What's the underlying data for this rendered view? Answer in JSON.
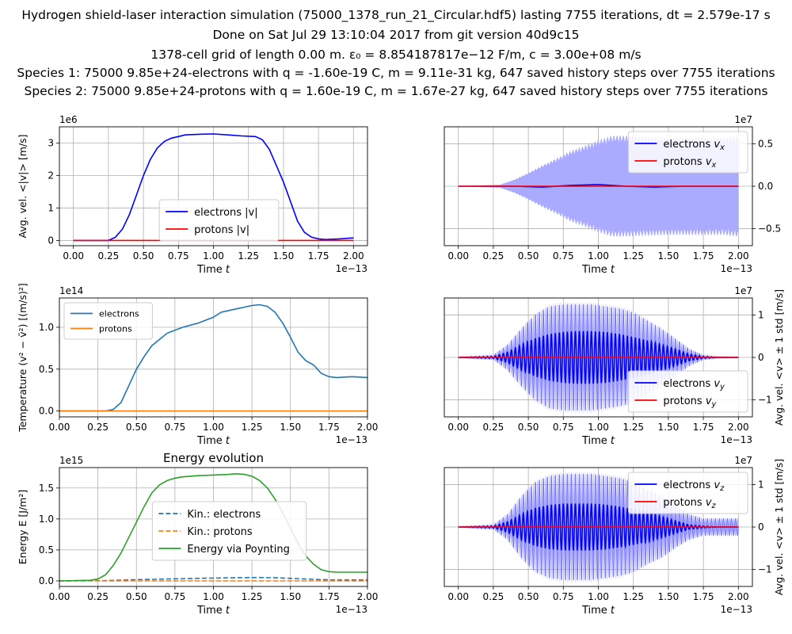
{
  "header": {
    "lines": [
      "Hydrogen shield-laser interaction simulation (75000_1378_run_21_Circular.hdf5) lasting 7755 iterations, dt = 2.579e-17 s",
      "Done on Sat Jul 29 13:10:04 2017 from git version 40d9c15",
      "1378-cell grid of length 0.00 m. ε₀ = 8.854187817e−12 F/m, c = 3.00e+08 m/s",
      "Species 1: 75000 9.85e+24-electrons with q = -1.60e-19 C, m = 9.11e-31 kg, 647 saved history steps over 7755 iterations",
      "Species 2: 75000 9.85e+24-protons with q = 1.60e-19 C, m = 1.67e-27 kg, 647 saved history steps over 7755 iterations"
    ]
  },
  "colors": {
    "blue": "#0000ff",
    "red": "#ff0000",
    "tab_blue": "#1f77b4",
    "tab_orange": "#ff7f0e",
    "tab_green": "#2ca02c",
    "band": "#aaaaff",
    "grid": "#b0b0b0"
  },
  "chart_data": [
    {
      "id": "abs_v",
      "type": "line",
      "title": "",
      "xlabel": "Time t",
      "ylabel": "Avg. vel. <|v|> [m/s]",
      "x_offset_label": "1e−13",
      "y_offset_label": "1e6",
      "xlim": [
        -0.1,
        2.1
      ],
      "ylim": [
        -0.16,
        3.5
      ],
      "xticks": [
        0.0,
        0.25,
        0.5,
        0.75,
        1.0,
        1.25,
        1.5,
        1.75,
        2.0
      ],
      "xticklabels": [
        "0.00",
        "0.25",
        "0.50",
        "0.75",
        "1.00",
        "1.25",
        "1.50",
        "1.75",
        "2.00"
      ],
      "yticks": [
        0,
        1,
        2,
        3
      ],
      "yticklabels": [
        "0",
        "1",
        "2",
        "3"
      ],
      "legend": "lower-center",
      "grid": true,
      "series": [
        {
          "name": "electrons |v|",
          "color": "#0000ff",
          "x": [
            0,
            0.25,
            0.3,
            0.35,
            0.4,
            0.45,
            0.5,
            0.55,
            0.6,
            0.65,
            0.7,
            0.75,
            0.8,
            0.9,
            1.0,
            1.1,
            1.2,
            1.3,
            1.35,
            1.4,
            1.45,
            1.5,
            1.55,
            1.6,
            1.65,
            1.7,
            1.75,
            1.8,
            1.9,
            2.0
          ],
          "y": [
            0,
            0,
            0.1,
            0.35,
            0.8,
            1.4,
            2.0,
            2.5,
            2.85,
            3.05,
            3.15,
            3.2,
            3.25,
            3.27,
            3.28,
            3.25,
            3.22,
            3.2,
            3.1,
            2.8,
            2.3,
            1.8,
            1.2,
            0.6,
            0.25,
            0.1,
            0.05,
            0.03,
            0.05,
            0.08
          ]
        },
        {
          "name": "protons |v|",
          "color": "#ff0000",
          "x": [
            0,
            2.0
          ],
          "y": [
            0,
            0
          ]
        }
      ]
    },
    {
      "id": "vx",
      "type": "line",
      "title": "",
      "xlabel": "Time t",
      "ylabel": "",
      "x_offset_label": "1e−13",
      "y_offset_label": "1e7",
      "xlim": [
        -0.1,
        2.1
      ],
      "ylim": [
        -0.7,
        0.7
      ],
      "xticks": [
        0.0,
        0.25,
        0.5,
        0.75,
        1.0,
        1.25,
        1.5,
        1.75,
        2.0
      ],
      "xticklabels": [
        "0.00",
        "0.25",
        "0.50",
        "0.75",
        "1.00",
        "1.25",
        "1.50",
        "1.75",
        "2.00"
      ],
      "yticks": [
        -0.5,
        0.0,
        0.5
      ],
      "yticklabels": [
        "−0.5",
        "0.0",
        "0.5"
      ],
      "y_axis_side": "right",
      "legend": "top-right",
      "grid": true,
      "band": {
        "x": [
          0,
          0.3,
          0.4,
          0.5,
          0.6,
          0.7,
          0.8,
          0.9,
          1.0,
          1.1,
          1.2,
          1.3,
          1.5,
          1.7,
          1.9,
          2.0
        ],
        "half_width": [
          0,
          0.02,
          0.08,
          0.16,
          0.25,
          0.33,
          0.42,
          0.48,
          0.55,
          0.6,
          0.6,
          0.59,
          0.58,
          0.58,
          0.58,
          0.6
        ]
      },
      "series": [
        {
          "name": "electrons v_x",
          "color": "#0000ff",
          "x": [
            0,
            0.4,
            0.6,
            0.8,
            1.0,
            1.2,
            1.4,
            1.6,
            1.8,
            2.0
          ],
          "y": [
            0,
            0,
            -0.01,
            0.01,
            0.02,
            0.0,
            -0.01,
            0.0,
            0.0,
            0.0
          ]
        },
        {
          "name": "protons v_x",
          "color": "#ff0000",
          "x": [
            0,
            2.0
          ],
          "y": [
            0,
            0
          ]
        }
      ]
    },
    {
      "id": "temperature",
      "type": "line",
      "title": "",
      "xlabel": "Time t",
      "ylabel": "Temperature (v² − v̄²) [(m/s)²]",
      "x_offset_label": "1e−13",
      "y_offset_label": "1e14",
      "xlim": [
        0,
        2.0
      ],
      "ylim": [
        -0.07,
        1.35
      ],
      "xticks": [
        0.0,
        0.25,
        0.5,
        0.75,
        1.0,
        1.25,
        1.5,
        1.75,
        2.0
      ],
      "xticklabels": [
        "0.00",
        "0.25",
        "0.50",
        "0.75",
        "1.00",
        "1.25",
        "1.50",
        "1.75",
        "2.00"
      ],
      "yticks": [
        0,
        0.5,
        1.0
      ],
      "yticklabels": [
        "0.0",
        "0.5",
        "1.0"
      ],
      "legend": "top-left",
      "grid": true,
      "series": [
        {
          "name": "electrons",
          "color": "#1f77b4",
          "x": [
            0,
            0.3,
            0.35,
            0.4,
            0.45,
            0.5,
            0.55,
            0.6,
            0.7,
            0.8,
            0.9,
            1.0,
            1.05,
            1.1,
            1.15,
            1.2,
            1.25,
            1.3,
            1.35,
            1.4,
            1.45,
            1.5,
            1.55,
            1.6,
            1.65,
            1.7,
            1.75,
            1.8,
            1.9,
            2.0
          ],
          "y": [
            0,
            0,
            0.02,
            0.1,
            0.3,
            0.5,
            0.65,
            0.78,
            0.93,
            1.0,
            1.05,
            1.12,
            1.18,
            1.2,
            1.22,
            1.24,
            1.26,
            1.27,
            1.25,
            1.18,
            1.05,
            0.88,
            0.7,
            0.6,
            0.55,
            0.45,
            0.41,
            0.4,
            0.41,
            0.4
          ]
        },
        {
          "name": "protons",
          "color": "#ff7f0e",
          "x": [
            0,
            2.0
          ],
          "y": [
            0,
            0
          ]
        }
      ]
    },
    {
      "id": "vy",
      "type": "line",
      "title": "",
      "xlabel": "Time t",
      "ylabel": "Avg. vel. <v> ± 1 std [m/s]",
      "x_offset_label": "1e−13",
      "y_offset_label": "1e7",
      "xlim": [
        -0.1,
        2.1
      ],
      "ylim": [
        -1.4,
        1.4
      ],
      "xticks": [
        0.0,
        0.25,
        0.5,
        0.75,
        1.0,
        1.25,
        1.5,
        1.75,
        2.0
      ],
      "xticklabels": [
        "0.00",
        "0.25",
        "0.50",
        "0.75",
        "1.00",
        "1.25",
        "1.50",
        "1.75",
        "2.00"
      ],
      "yticks": [
        -1,
        0,
        1
      ],
      "yticklabels": [
        "−1",
        "0",
        "1"
      ],
      "y_axis_side": "right",
      "legend": "bottom-right",
      "grid": true,
      "oscillation": {
        "x": [
          0,
          0.25,
          0.35,
          0.45,
          0.55,
          0.65,
          0.75,
          0.85,
          0.95,
          1.05,
          1.15,
          1.25,
          1.35,
          1.45,
          1.55,
          1.65,
          1.75,
          1.85,
          2.0
        ],
        "mean_amp": [
          0,
          0.02,
          0.12,
          0.3,
          0.45,
          0.55,
          0.6,
          0.62,
          0.62,
          0.6,
          0.55,
          0.48,
          0.4,
          0.3,
          0.2,
          0.08,
          0.02,
          0,
          0
        ],
        "band_amp": [
          0,
          0.05,
          0.3,
          0.7,
          1.05,
          1.25,
          1.3,
          1.3,
          1.3,
          1.25,
          1.2,
          1.1,
          0.9,
          0.7,
          0.45,
          0.2,
          0.05,
          0.01,
          0
        ],
        "cycles": 70
      },
      "series": [
        {
          "name": "electrons v_y",
          "color": "#0000ff"
        },
        {
          "name": "protons v_y",
          "color": "#ff0000",
          "x": [
            0,
            2.0
          ],
          "y": [
            0,
            0
          ]
        }
      ]
    },
    {
      "id": "energy",
      "type": "line",
      "title": "Energy evolution",
      "xlabel": "Time t",
      "ylabel": "Energy E [J/m²]",
      "x_offset_label": "1e−13",
      "y_offset_label": "1e15",
      "xlim": [
        0,
        2.0
      ],
      "ylim": [
        -0.09,
        1.83
      ],
      "xticks": [
        0.0,
        0.25,
        0.5,
        0.75,
        1.0,
        1.25,
        1.5,
        1.75,
        2.0
      ],
      "xticklabels": [
        "0.00",
        "0.25",
        "0.50",
        "0.75",
        "1.00",
        "1.25",
        "1.50",
        "1.75",
        "2.00"
      ],
      "yticks": [
        0,
        0.5,
        1.0,
        1.5
      ],
      "yticklabels": [
        "0.0",
        "0.5",
        "1.0",
        "1.5"
      ],
      "legend": "center",
      "grid": true,
      "series": [
        {
          "name": "Kin.: electrons",
          "color": "#1f77b4",
          "dash": true,
          "x": [
            0,
            0.3,
            0.5,
            0.7,
            0.9,
            1.1,
            1.3,
            1.4,
            1.5,
            1.6,
            1.7,
            1.8,
            2.0
          ],
          "y": [
            0,
            0.005,
            0.02,
            0.03,
            0.04,
            0.05,
            0.055,
            0.05,
            0.04,
            0.03,
            0.02,
            0.015,
            0.015
          ]
        },
        {
          "name": "Kin.: protons",
          "color": "#ff7f0e",
          "dash": true,
          "x": [
            0,
            2.0
          ],
          "y": [
            0,
            0
          ]
        },
        {
          "name": "Energy via Poynting",
          "color": "#2ca02c",
          "dash": false,
          "x": [
            0,
            0.2,
            0.25,
            0.3,
            0.35,
            0.4,
            0.45,
            0.5,
            0.55,
            0.6,
            0.65,
            0.7,
            0.75,
            0.8,
            0.9,
            1.0,
            1.1,
            1.15,
            1.2,
            1.25,
            1.3,
            1.35,
            1.4,
            1.45,
            1.5,
            1.55,
            1.6,
            1.65,
            1.7,
            1.75,
            1.8,
            1.9,
            2.0
          ],
          "y": [
            0,
            0.01,
            0.03,
            0.1,
            0.25,
            0.45,
            0.7,
            0.95,
            1.2,
            1.42,
            1.55,
            1.62,
            1.66,
            1.68,
            1.7,
            1.71,
            1.72,
            1.73,
            1.72,
            1.69,
            1.62,
            1.5,
            1.32,
            1.1,
            0.85,
            0.6,
            0.4,
            0.27,
            0.18,
            0.15,
            0.14,
            0.14,
            0.14
          ]
        }
      ]
    },
    {
      "id": "vz",
      "type": "line",
      "title": "",
      "xlabel": "Time t",
      "ylabel": "Avg. vel. <v> ± 1 std [m/s]",
      "x_offset_label": "1e−13",
      "y_offset_label": "1e7",
      "xlim": [
        -0.1,
        2.1
      ],
      "ylim": [
        -1.4,
        1.4
      ],
      "xticks": [
        0.0,
        0.25,
        0.5,
        0.75,
        1.0,
        1.25,
        1.5,
        1.75,
        2.0
      ],
      "xticklabels": [
        "0.00",
        "0.25",
        "0.50",
        "0.75",
        "1.00",
        "1.25",
        "1.50",
        "1.75",
        "2.00"
      ],
      "yticks": [
        -1,
        0,
        1
      ],
      "yticklabels": [
        "−1",
        "0",
        "1"
      ],
      "y_axis_side": "right",
      "legend": "top-right",
      "grid": true,
      "oscillation": {
        "x": [
          0,
          0.25,
          0.35,
          0.45,
          0.55,
          0.65,
          0.75,
          0.85,
          0.95,
          1.05,
          1.15,
          1.25,
          1.35,
          1.45,
          1.55,
          1.65,
          1.75,
          1.85,
          2.0
        ],
        "mean_amp": [
          0,
          0.02,
          0.12,
          0.3,
          0.45,
          0.52,
          0.55,
          0.55,
          0.55,
          0.53,
          0.48,
          0.42,
          0.35,
          0.25,
          0.15,
          0.05,
          0.02,
          0,
          0
        ],
        "band_amp": [
          0,
          0.05,
          0.3,
          0.75,
          1.1,
          1.25,
          1.3,
          1.3,
          1.3,
          1.25,
          1.2,
          1.1,
          0.9,
          0.75,
          0.5,
          0.3,
          0.2,
          0.2,
          0.2
        ],
        "cycles": 70
      },
      "series": [
        {
          "name": "electrons v_z",
          "color": "#0000ff"
        },
        {
          "name": "protons v_z",
          "color": "#ff0000",
          "x": [
            0,
            2.0
          ],
          "y": [
            0,
            0
          ]
        }
      ]
    }
  ]
}
